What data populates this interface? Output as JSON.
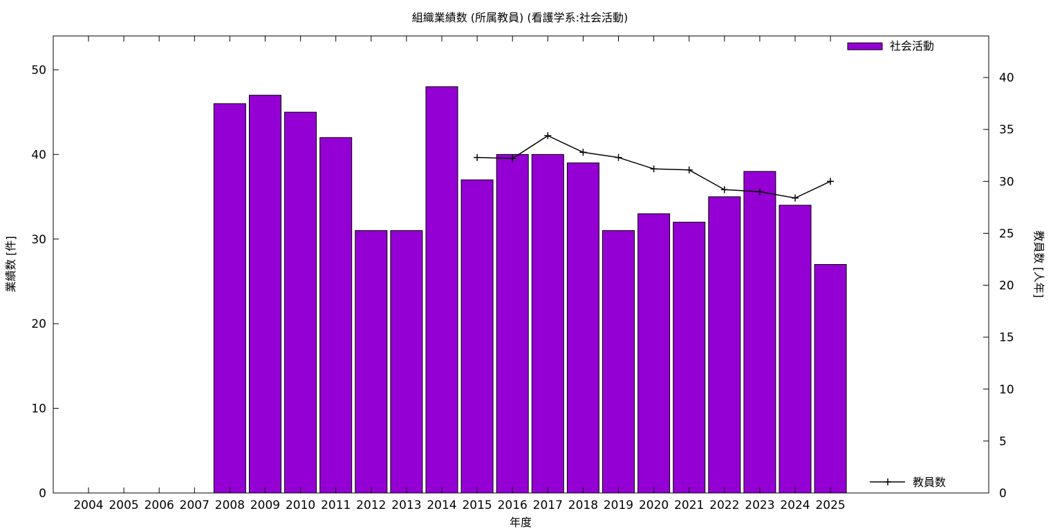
{
  "chart_data": {
    "type": "bar",
    "title": "組織業績数 (所属教員) (看護学系:社会活動)",
    "xlabel": "年度",
    "ylabel": "業績数 [件]",
    "y2label": "教員数 [人年]",
    "categories": [
      "2004",
      "2005",
      "2006",
      "2007",
      "2008",
      "2009",
      "2010",
      "2011",
      "2012",
      "2013",
      "2014",
      "2015",
      "2016",
      "2017",
      "2018",
      "2019",
      "2020",
      "2021",
      "2022",
      "2023",
      "2024",
      "2025"
    ],
    "ylim": [
      0,
      54
    ],
    "y2lim": [
      0,
      44
    ],
    "yticks": [
      0,
      10,
      20,
      30,
      40,
      50
    ],
    "y2ticks": [
      0,
      5,
      10,
      15,
      20,
      25,
      30,
      35,
      40
    ],
    "grid": false,
    "series": [
      {
        "name": "社会活動",
        "kind": "bar",
        "axis": "left",
        "color": "#9400d3",
        "values": [
          0,
          0,
          0,
          0,
          46,
          47,
          45,
          42,
          31,
          31,
          48,
          37,
          40,
          40,
          39,
          31,
          33,
          32,
          35,
          38,
          34,
          27
        ]
      },
      {
        "name": "教員数",
        "kind": "line",
        "axis": "right",
        "color": "#000000",
        "values": [
          null,
          null,
          null,
          null,
          null,
          null,
          null,
          null,
          null,
          null,
          null,
          32.3,
          32.2,
          34.4,
          32.8,
          32.3,
          31.2,
          31.1,
          29.2,
          29.0,
          28.4,
          30.0
        ]
      }
    ],
    "legend": [
      {
        "label": "社会活動",
        "placement": "top-right"
      },
      {
        "label": "教員数",
        "placement": "bottom-right"
      }
    ]
  }
}
